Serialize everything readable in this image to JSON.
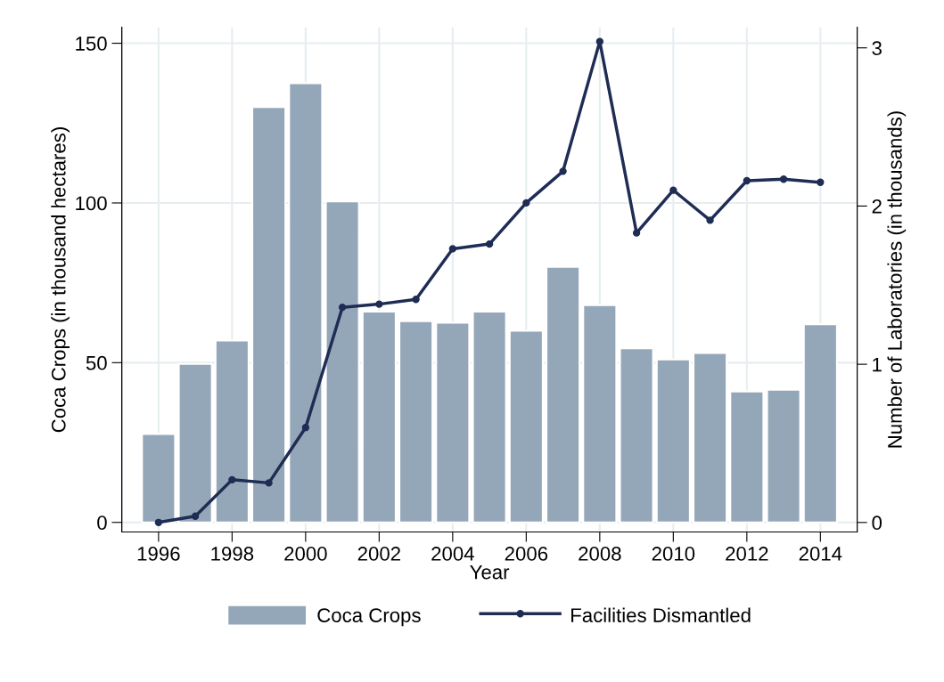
{
  "chart_data": {
    "type": "bar",
    "xlabel": "Year",
    "ylabel": "Coca Crops (in thousand hectares)",
    "y2label": "Number of Laboratories (in thousands)",
    "x": [
      1996,
      1997,
      1998,
      1999,
      2000,
      2001,
      2002,
      2003,
      2004,
      2005,
      2006,
      2007,
      2008,
      2009,
      2010,
      2011,
      2012,
      2013,
      2014
    ],
    "series": [
      {
        "name": "Coca Crops",
        "color": "#94a7b8",
        "values": [
          27.7,
          49.6,
          56.9,
          130,
          137.5,
          100.5,
          66,
          63,
          62.5,
          66,
          60,
          80,
          68,
          54.5,
          51,
          53,
          41,
          41.5,
          62
        ]
      },
      {
        "name": "Facilities Dismantled",
        "type": "line",
        "axis": "y2",
        "color": "#1f2d54",
        "marker": "circle",
        "line_style": "solid",
        "values": [
          0,
          0.04,
          0.27,
          0.25,
          0.6,
          1.36,
          1.38,
          1.41,
          1.73,
          1.76,
          2.02,
          2.22,
          3.04,
          1.83,
          2.1,
          1.91,
          2.16,
          2.17,
          2.15
        ]
      }
    ],
    "xlim": [
      1995,
      2015
    ],
    "xticks": [
      1996,
      1998,
      2000,
      2002,
      2004,
      2006,
      2008,
      2010,
      2012,
      2014
    ],
    "ylim": [
      -3,
      155
    ],
    "yticks": [
      0,
      50,
      100,
      150
    ],
    "y2lim": [
      -0.06,
      3.13
    ],
    "y2ticks": [
      0,
      1,
      2,
      3
    ],
    "grid": true,
    "legend": "bottom"
  }
}
